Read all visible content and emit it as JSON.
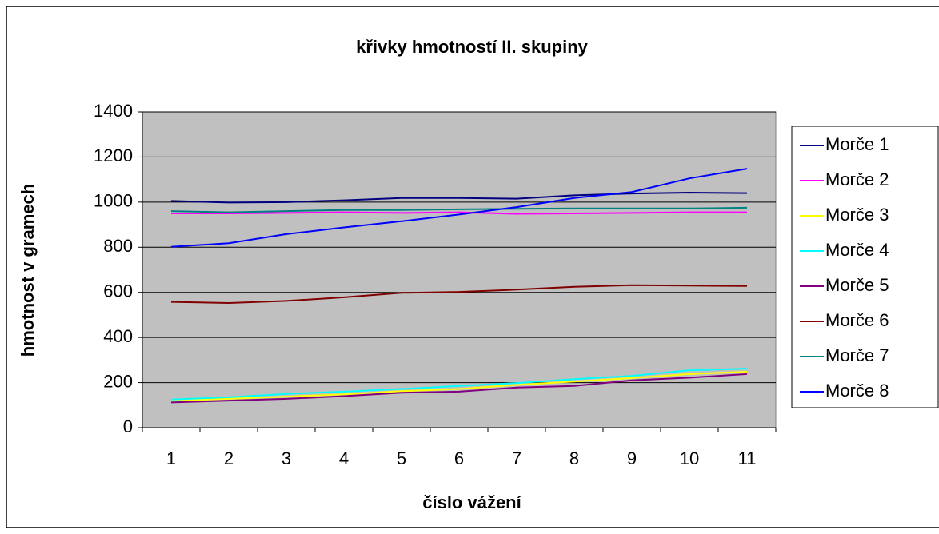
{
  "chart_data": {
    "type": "line",
    "title": "křivky hmotností II. skupiny",
    "x_label": "číslo vážení",
    "y_label": "hmotnost v gramech",
    "categories": [
      "1",
      "2",
      "3",
      "4",
      "5",
      "6",
      "7",
      "8",
      "9",
      "10",
      "11"
    ],
    "series": [
      {
        "name": "Morče 1",
        "color": "#000080",
        "values": [
          1005,
          998,
          1000,
          1008,
          1018,
          1018,
          1015,
          1030,
          1038,
          1042,
          1040
        ]
      },
      {
        "name": "Morče 2",
        "color": "#ff00ff",
        "values": [
          950,
          950,
          952,
          955,
          952,
          955,
          948,
          950,
          952,
          955,
          955
        ]
      },
      {
        "name": "Morče 3",
        "color": "#ffff00",
        "values": [
          120,
          128,
          138,
          148,
          162,
          172,
          190,
          205,
          220,
          238,
          248
        ]
      },
      {
        "name": "Morče 4",
        "color": "#00ffff",
        "values": [
          125,
          135,
          150,
          160,
          172,
          185,
          198,
          215,
          230,
          255,
          262
        ]
      },
      {
        "name": "Morče 5",
        "color": "#800080",
        "values": [
          112,
          120,
          128,
          140,
          155,
          160,
          178,
          185,
          210,
          222,
          238
        ]
      },
      {
        "name": "Morče 6",
        "color": "#800000",
        "values": [
          558,
          553,
          562,
          578,
          598,
          602,
          612,
          625,
          632,
          630,
          628
        ]
      },
      {
        "name": "Morče 7",
        "color": "#008080",
        "values": [
          960,
          955,
          960,
          965,
          965,
          968,
          970,
          972,
          972,
          972,
          975
        ]
      },
      {
        "name": "Morče 8",
        "color": "#0000ff",
        "values": [
          802,
          818,
          858,
          888,
          915,
          945,
          978,
          1018,
          1045,
          1105,
          1148
        ]
      }
    ],
    "ylim": [
      0,
      1400
    ],
    "yticks": [
      0,
      200,
      400,
      600,
      800,
      1000,
      1200,
      1400
    ],
    "grid": true,
    "legend": "right",
    "plot_background": "#c0c0c0"
  }
}
